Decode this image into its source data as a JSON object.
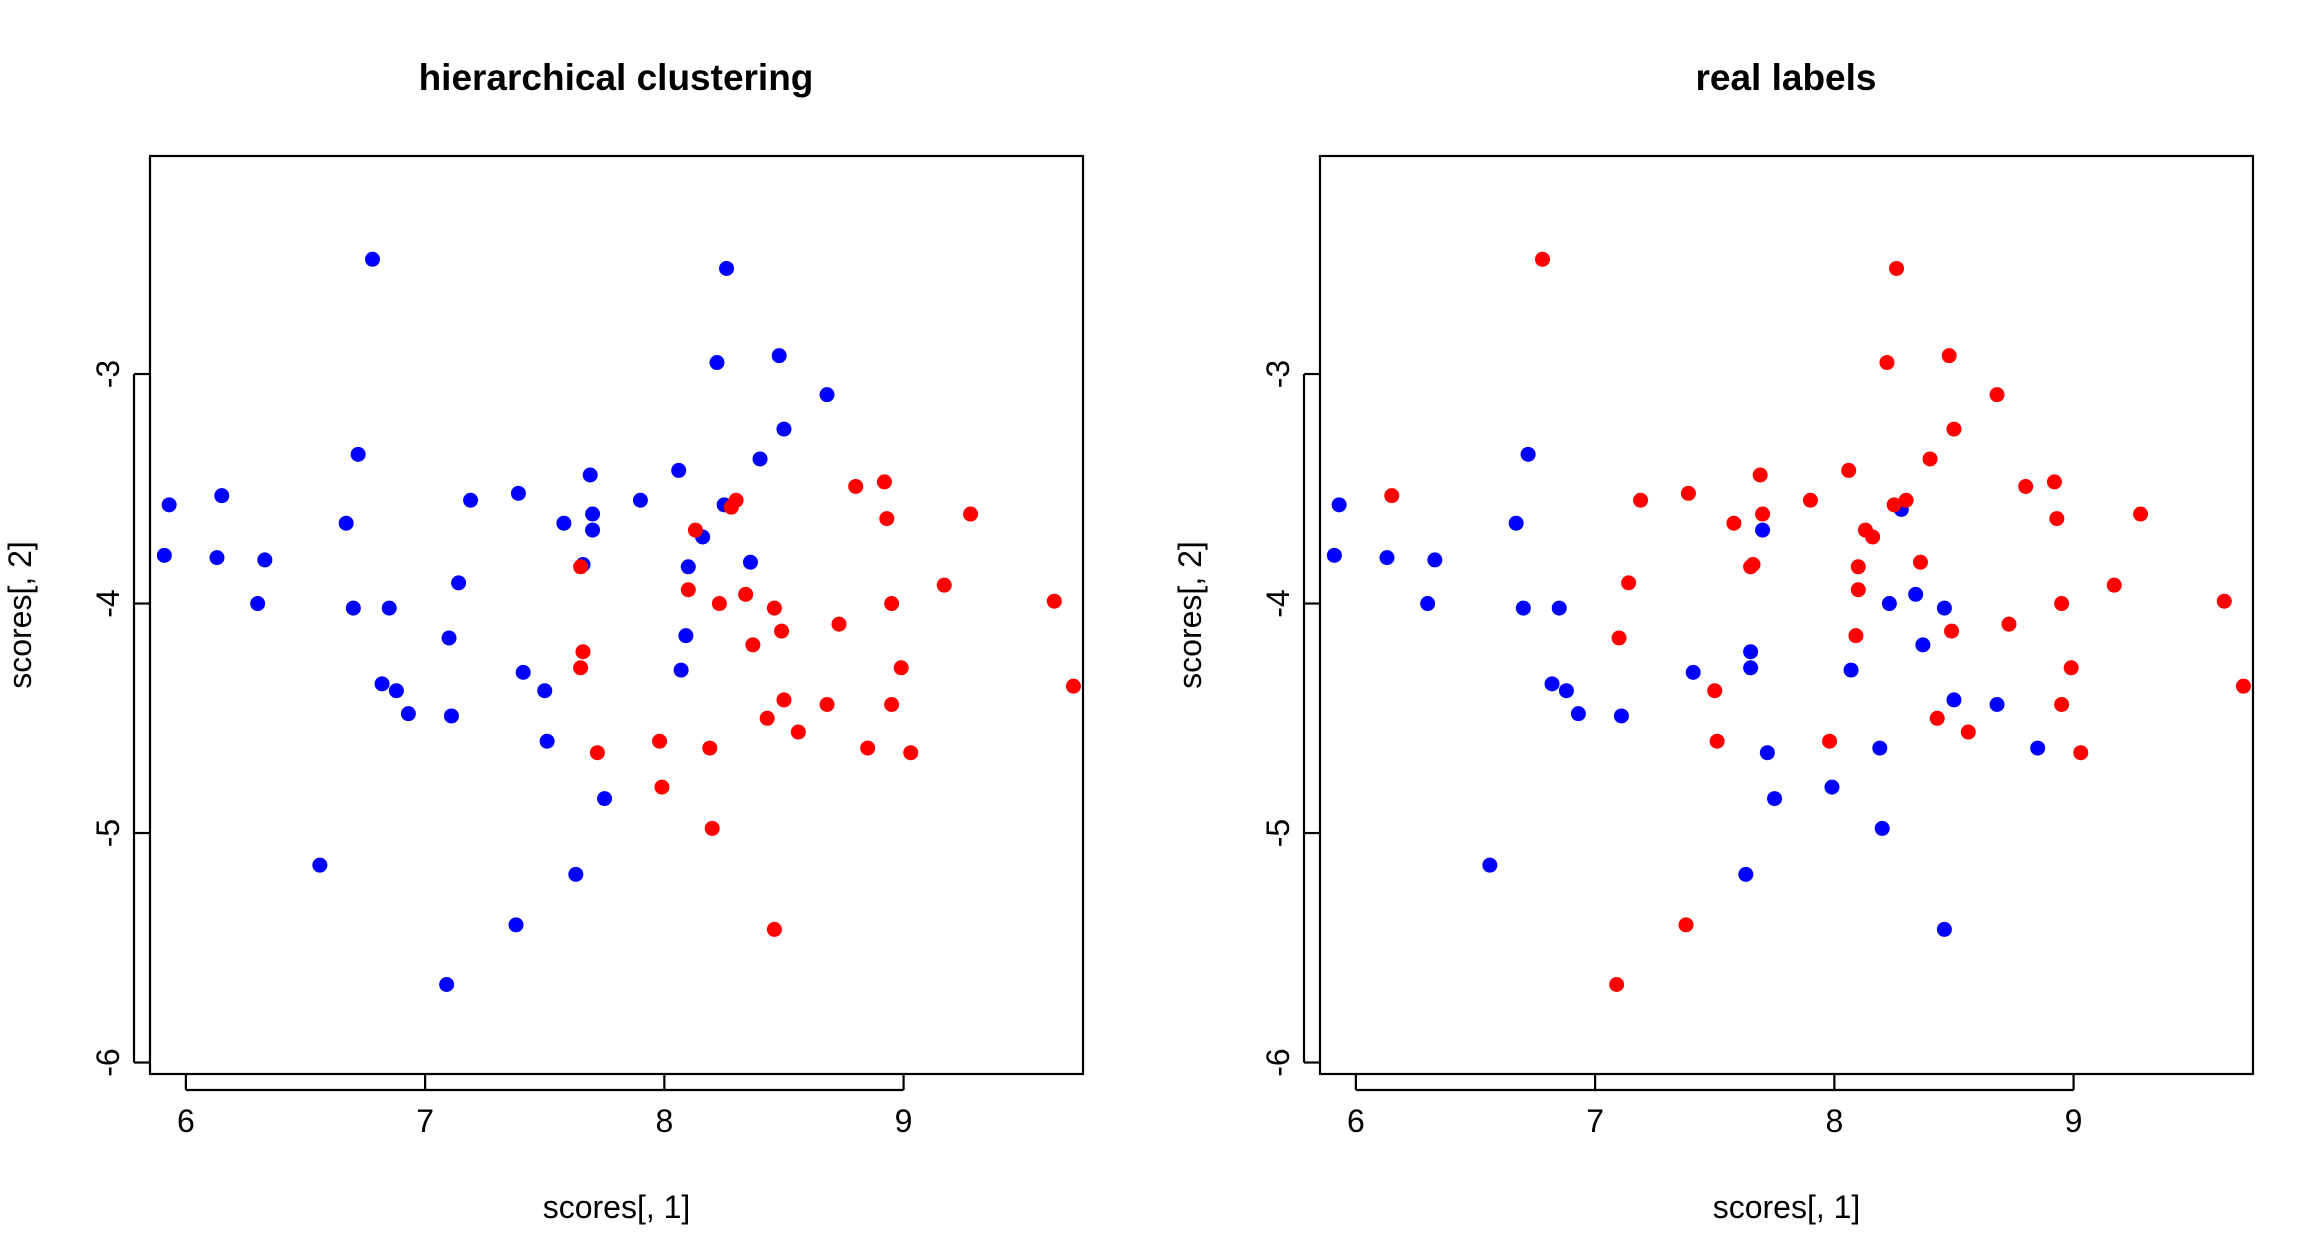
{
  "chart_data": [
    {
      "type": "scatter",
      "title": "hierarchical clustering",
      "xlabel": "scores[, 1]",
      "ylabel": "scores[, 2]",
      "xlim": [
        5.85,
        9.75
      ],
      "ylim": [
        -6.05,
        -2.05
      ],
      "xticks": [
        6,
        7,
        8,
        9
      ],
      "yticks": [
        -6,
        -5,
        -4,
        -3
      ],
      "xtick_labels": [
        "6",
        "7",
        "8",
        "9"
      ],
      "ytick_labels": [
        "-6",
        "-5",
        "-4",
        "-3"
      ],
      "grid": false,
      "legend": "none",
      "series": [
        {
          "color": "#0000ff",
          "points": [
            [
              6.78,
              -2.5
            ],
            [
              8.26,
              -2.54
            ],
            [
              8.22,
              -2.95
            ],
            [
              8.48,
              -2.92
            ],
            [
              8.68,
              -3.09
            ],
            [
              8.5,
              -3.24
            ],
            [
              8.4,
              -3.37
            ],
            [
              6.72,
              -3.35
            ],
            [
              7.69,
              -3.44
            ],
            [
              8.06,
              -3.42
            ],
            [
              5.93,
              -3.57
            ],
            [
              6.15,
              -3.53
            ],
            [
              7.19,
              -3.55
            ],
            [
              7.39,
              -3.52
            ],
            [
              7.9,
              -3.55
            ],
            [
              8.25,
              -3.57
            ],
            [
              6.67,
              -3.65
            ],
            [
              7.58,
              -3.65
            ],
            [
              7.7,
              -3.61
            ],
            [
              7.7,
              -3.68
            ],
            [
              8.16,
              -3.71
            ],
            [
              5.91,
              -3.79
            ],
            [
              6.13,
              -3.8
            ],
            [
              6.33,
              -3.81
            ],
            [
              7.14,
              -3.91
            ],
            [
              7.66,
              -3.83
            ],
            [
              8.1,
              -3.84
            ],
            [
              8.36,
              -3.82
            ],
            [
              6.3,
              -4.0
            ],
            [
              6.7,
              -4.02
            ],
            [
              6.85,
              -4.02
            ],
            [
              7.1,
              -4.15
            ],
            [
              8.09,
              -4.14
            ],
            [
              7.41,
              -4.3
            ],
            [
              8.07,
              -4.29
            ],
            [
              6.82,
              -4.35
            ],
            [
              6.88,
              -4.38
            ],
            [
              7.5,
              -4.38
            ],
            [
              6.93,
              -4.48
            ],
            [
              7.11,
              -4.49
            ],
            [
              7.51,
              -4.6
            ],
            [
              7.75,
              -4.85
            ],
            [
              6.56,
              -5.14
            ],
            [
              7.63,
              -5.18
            ],
            [
              7.38,
              -5.4
            ],
            [
              7.09,
              -5.66
            ]
          ]
        },
        {
          "color": "#ff0000",
          "points": [
            [
              8.8,
              -3.49
            ],
            [
              8.92,
              -3.47
            ],
            [
              8.3,
              -3.55
            ],
            [
              8.28,
              -3.58
            ],
            [
              9.28,
              -3.61
            ],
            [
              8.93,
              -3.63
            ],
            [
              8.13,
              -3.68
            ],
            [
              7.65,
              -3.84
            ],
            [
              9.17,
              -3.92
            ],
            [
              8.1,
              -3.94
            ],
            [
              8.34,
              -3.96
            ],
            [
              8.23,
              -4.0
            ],
            [
              8.46,
              -4.02
            ],
            [
              8.95,
              -4.0
            ],
            [
              9.63,
              -3.99
            ],
            [
              8.73,
              -4.09
            ],
            [
              8.49,
              -4.12
            ],
            [
              8.37,
              -4.18
            ],
            [
              7.66,
              -4.21
            ],
            [
              7.65,
              -4.28
            ],
            [
              8.99,
              -4.28
            ],
            [
              8.5,
              -4.42
            ],
            [
              8.68,
              -4.44
            ],
            [
              8.95,
              -4.44
            ],
            [
              8.43,
              -4.5
            ],
            [
              8.56,
              -4.56
            ],
            [
              7.98,
              -4.6
            ],
            [
              8.19,
              -4.63
            ],
            [
              8.85,
              -4.63
            ],
            [
              7.72,
              -4.65
            ],
            [
              9.03,
              -4.65
            ],
            [
              7.99,
              -4.8
            ],
            [
              8.2,
              -4.98
            ],
            [
              8.46,
              -5.42
            ],
            [
              9.71,
              -4.36
            ]
          ]
        }
      ]
    },
    {
      "type": "scatter",
      "title": "real labels",
      "xlabel": "scores[, 1]",
      "ylabel": "scores[, 2]",
      "xlim": [
        5.85,
        9.75
      ],
      "ylim": [
        -6.05,
        -2.05
      ],
      "xticks": [
        6,
        7,
        8,
        9
      ],
      "yticks": [
        -6,
        -5,
        -4,
        -3
      ],
      "xtick_labels": [
        "6",
        "7",
        "8",
        "9"
      ],
      "ytick_labels": [
        "-6",
        "-5",
        "-4",
        "-3"
      ],
      "grid": false,
      "legend": "none",
      "series": [
        {
          "color": "#0000ff",
          "points": [
            [
              6.72,
              -3.35
            ],
            [
              8.28,
              -3.59
            ],
            [
              5.93,
              -3.57
            ],
            [
              6.67,
              -3.65
            ],
            [
              7.7,
              -3.68
            ],
            [
              5.91,
              -3.79
            ],
            [
              6.13,
              -3.8
            ],
            [
              6.33,
              -3.81
            ],
            [
              6.3,
              -4.0
            ],
            [
              6.7,
              -4.02
            ],
            [
              6.85,
              -4.02
            ],
            [
              8.23,
              -4.0
            ],
            [
              8.34,
              -3.96
            ],
            [
              8.46,
              -4.02
            ],
            [
              8.37,
              -4.18
            ],
            [
              7.65,
              -4.21
            ],
            [
              7.65,
              -4.28
            ],
            [
              8.07,
              -4.29
            ],
            [
              7.41,
              -4.3
            ],
            [
              6.82,
              -4.35
            ],
            [
              6.88,
              -4.38
            ],
            [
              6.93,
              -4.48
            ],
            [
              7.11,
              -4.49
            ],
            [
              8.5,
              -4.42
            ],
            [
              8.68,
              -4.44
            ],
            [
              7.72,
              -4.65
            ],
            [
              8.19,
              -4.63
            ],
            [
              8.85,
              -4.63
            ],
            [
              7.99,
              -4.8
            ],
            [
              7.75,
              -4.85
            ],
            [
              8.2,
              -4.98
            ],
            [
              6.56,
              -5.14
            ],
            [
              7.63,
              -5.18
            ],
            [
              8.46,
              -5.42
            ]
          ]
        },
        {
          "color": "#ff0000",
          "points": [
            [
              6.78,
              -2.5
            ],
            [
              8.26,
              -2.54
            ],
            [
              8.22,
              -2.95
            ],
            [
              8.48,
              -2.92
            ],
            [
              8.68,
              -3.09
            ],
            [
              8.5,
              -3.24
            ],
            [
              8.4,
              -3.37
            ],
            [
              7.69,
              -3.44
            ],
            [
              8.06,
              -3.42
            ],
            [
              6.15,
              -3.53
            ],
            [
              7.19,
              -3.55
            ],
            [
              7.39,
              -3.52
            ],
            [
              7.9,
              -3.55
            ],
            [
              8.25,
              -3.57
            ],
            [
              8.3,
              -3.55
            ],
            [
              8.8,
              -3.49
            ],
            [
              8.92,
              -3.47
            ],
            [
              7.58,
              -3.65
            ],
            [
              7.7,
              -3.61
            ],
            [
              8.13,
              -3.68
            ],
            [
              8.16,
              -3.71
            ],
            [
              8.93,
              -3.63
            ],
            [
              9.28,
              -3.61
            ],
            [
              7.66,
              -3.83
            ],
            [
              7.65,
              -3.84
            ],
            [
              8.1,
              -3.84
            ],
            [
              8.36,
              -3.82
            ],
            [
              7.14,
              -3.91
            ],
            [
              8.1,
              -3.94
            ],
            [
              9.17,
              -3.92
            ],
            [
              8.95,
              -4.0
            ],
            [
              9.63,
              -3.99
            ],
            [
              7.1,
              -4.15
            ],
            [
              8.09,
              -4.14
            ],
            [
              8.49,
              -4.12
            ],
            [
              8.73,
              -4.09
            ],
            [
              8.99,
              -4.28
            ],
            [
              7.5,
              -4.38
            ],
            [
              8.95,
              -4.44
            ],
            [
              8.43,
              -4.5
            ],
            [
              8.56,
              -4.56
            ],
            [
              7.51,
              -4.6
            ],
            [
              7.98,
              -4.6
            ],
            [
              9.03,
              -4.65
            ],
            [
              9.71,
              -4.36
            ],
            [
              7.38,
              -5.4
            ],
            [
              7.09,
              -5.66
            ]
          ]
        }
      ]
    }
  ]
}
